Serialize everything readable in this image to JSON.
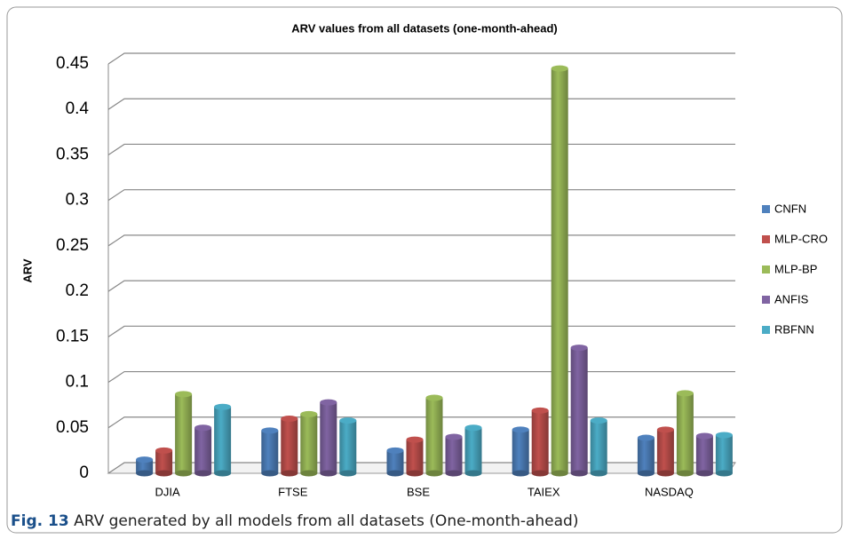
{
  "chart_data": {
    "type": "bar",
    "title": "ARV values from all datasets (one-month-ahead)",
    "y_label": "ARV",
    "categories": [
      "DJIA",
      "FTSE",
      "BSE",
      "TAIEX",
      "NASDAQ"
    ],
    "series": [
      {
        "name": "CNFN",
        "color": "#4f81bd",
        "values": [
          0.015,
          0.047,
          0.025,
          0.048,
          0.039
        ]
      },
      {
        "name": "MLP-CRO",
        "color": "#c0504d",
        "values": [
          0.025,
          0.06,
          0.037,
          0.069,
          0.048
        ]
      },
      {
        "name": "MLP-BP",
        "color": "#9bbb59",
        "values": [
          0.087,
          0.065,
          0.083,
          0.445,
          0.088
        ]
      },
      {
        "name": "ANFIS",
        "color": "#8064a2",
        "values": [
          0.05,
          0.078,
          0.04,
          0.138,
          0.041
        ]
      },
      {
        "name": "RBFNN",
        "color": "#4bacc6",
        "values": [
          0.073,
          0.058,
          0.05,
          0.058,
          0.042
        ]
      }
    ],
    "ylim": [
      0,
      0.45
    ],
    "yticks": [
      0,
      0.05,
      0.1,
      0.15,
      0.2,
      0.25,
      0.3,
      0.35,
      0.4,
      0.45
    ],
    "grid": true,
    "legend": "right"
  },
  "caption": {
    "label": "Fig. 13",
    "text": "ARV generated by all models from all datasets (One-month-ahead)"
  }
}
